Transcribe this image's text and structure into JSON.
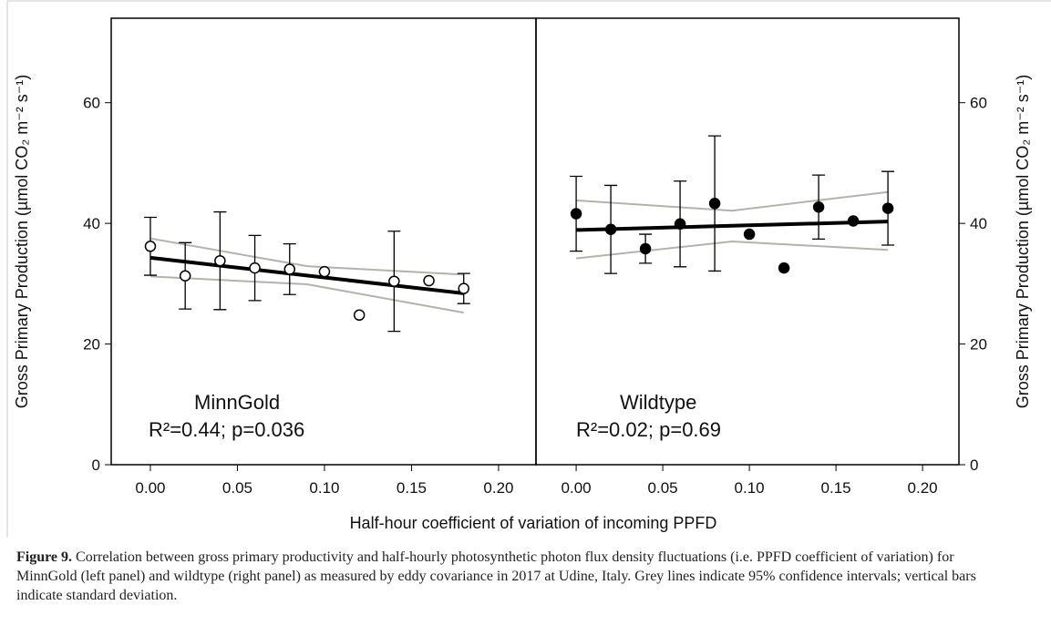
{
  "figure": {
    "x_label": "Half-hour coefficient of variation of incoming PPFD",
    "caption": {
      "label": "Figure 9.",
      "text": "Correlation between gross primary productivity and half-hourly photosynthetic photon flux density fluctuations (i.e. PPFD coefficient of variation) for MinnGold (left panel) and wildtype (right panel) as measured by eddy covariance in 2017 at Udine, Italy. Grey lines indicate 95% confidence intervals; vertical bars indicate standard deviation."
    }
  },
  "chart_data": [
    {
      "type": "scatter",
      "y_label": "Gross Primary Production (µmol CO₂ m⁻² s⁻¹)",
      "yaxis": "left",
      "annotations": [
        "MinnGold",
        "R²=0.44; p=0.036"
      ],
      "xlim": [
        -0.0225,
        0.2215
      ],
      "ylim": [
        0,
        74
      ],
      "xticks": [
        {
          "value": 0,
          "label": "0.00"
        },
        {
          "value": 0.05,
          "label": "0.05"
        },
        {
          "value": 0.1,
          "label": "0.10"
        },
        {
          "value": 0.15,
          "label": "0.15"
        },
        {
          "value": 0.2,
          "label": "0.20"
        }
      ],
      "yticks": [
        0,
        20,
        40,
        60
      ],
      "series": [
        {
          "style": "line",
          "color": "#b3b3aa",
          "x": [
            0,
            0.09,
            0.18
          ],
          "values": [
            37.5,
            32.9,
            31.5
          ]
        },
        {
          "style": "line",
          "color": "#b3b3aa",
          "x": [
            0,
            0.09,
            0.18
          ],
          "values": [
            31.2,
            29.9,
            25.2
          ]
        },
        {
          "style": "fit",
          "color": "#000000",
          "x": [
            0,
            0.18
          ],
          "values": [
            34.3,
            28.4
          ]
        },
        {
          "style": "points",
          "color": "#000000",
          "fill": "#ffffff",
          "x": [
            0,
            0.02,
            0.04,
            0.06,
            0.08,
            0.1,
            0.12,
            0.14,
            0.16,
            0.18
          ],
          "values": [
            36.2,
            31.3,
            33.8,
            32.6,
            32.4,
            32.0,
            24.8,
            30.4,
            30.5,
            29.2
          ],
          "error": [
            4.8,
            5.5,
            8.1,
            5.4,
            4.2,
            null,
            null,
            8.3,
            null,
            2.5
          ]
        }
      ]
    },
    {
      "type": "scatter",
      "y_label": "Gross Primary Production (µmol CO₂ m⁻² s⁻¹)",
      "yaxis": "right",
      "annotations": [
        "Wildtype",
        "R²=0.02; p=0.69"
      ],
      "xlim": [
        -0.0232,
        0.221
      ],
      "ylim": [
        0,
        74
      ],
      "xticks": [
        {
          "value": 0,
          "label": "0.00"
        },
        {
          "value": 0.05,
          "label": "0.05"
        },
        {
          "value": 0.1,
          "label": "0.10"
        },
        {
          "value": 0.15,
          "label": "0.15"
        },
        {
          "value": 0.2,
          "label": "0.20"
        }
      ],
      "yticks": [
        0,
        20,
        40,
        60
      ],
      "series": [
        {
          "style": "line",
          "color": "#b3b3aa",
          "x": [
            0,
            0.09,
            0.18
          ],
          "values": [
            43.8,
            42.1,
            45.2
          ]
        },
        {
          "style": "line",
          "color": "#b3b3aa",
          "x": [
            0,
            0.09,
            0.18
          ],
          "values": [
            34.2,
            37.0,
            35.6
          ]
        },
        {
          "style": "fit",
          "color": "#000000",
          "x": [
            0,
            0.18
          ],
          "values": [
            38.9,
            40.3
          ]
        },
        {
          "style": "points",
          "color": "#000000",
          "fill": "#000000",
          "x": [
            0,
            0.02,
            0.04,
            0.06,
            0.08,
            0.1,
            0.12,
            0.14,
            0.16,
            0.18
          ],
          "values": [
            41.6,
            39.0,
            35.8,
            39.9,
            43.3,
            38.2,
            32.6,
            42.7,
            40.4,
            42.5
          ],
          "error": [
            6.2,
            7.3,
            2.4,
            7.1,
            11.2,
            null,
            null,
            5.3,
            null,
            6.1
          ]
        }
      ]
    }
  ]
}
